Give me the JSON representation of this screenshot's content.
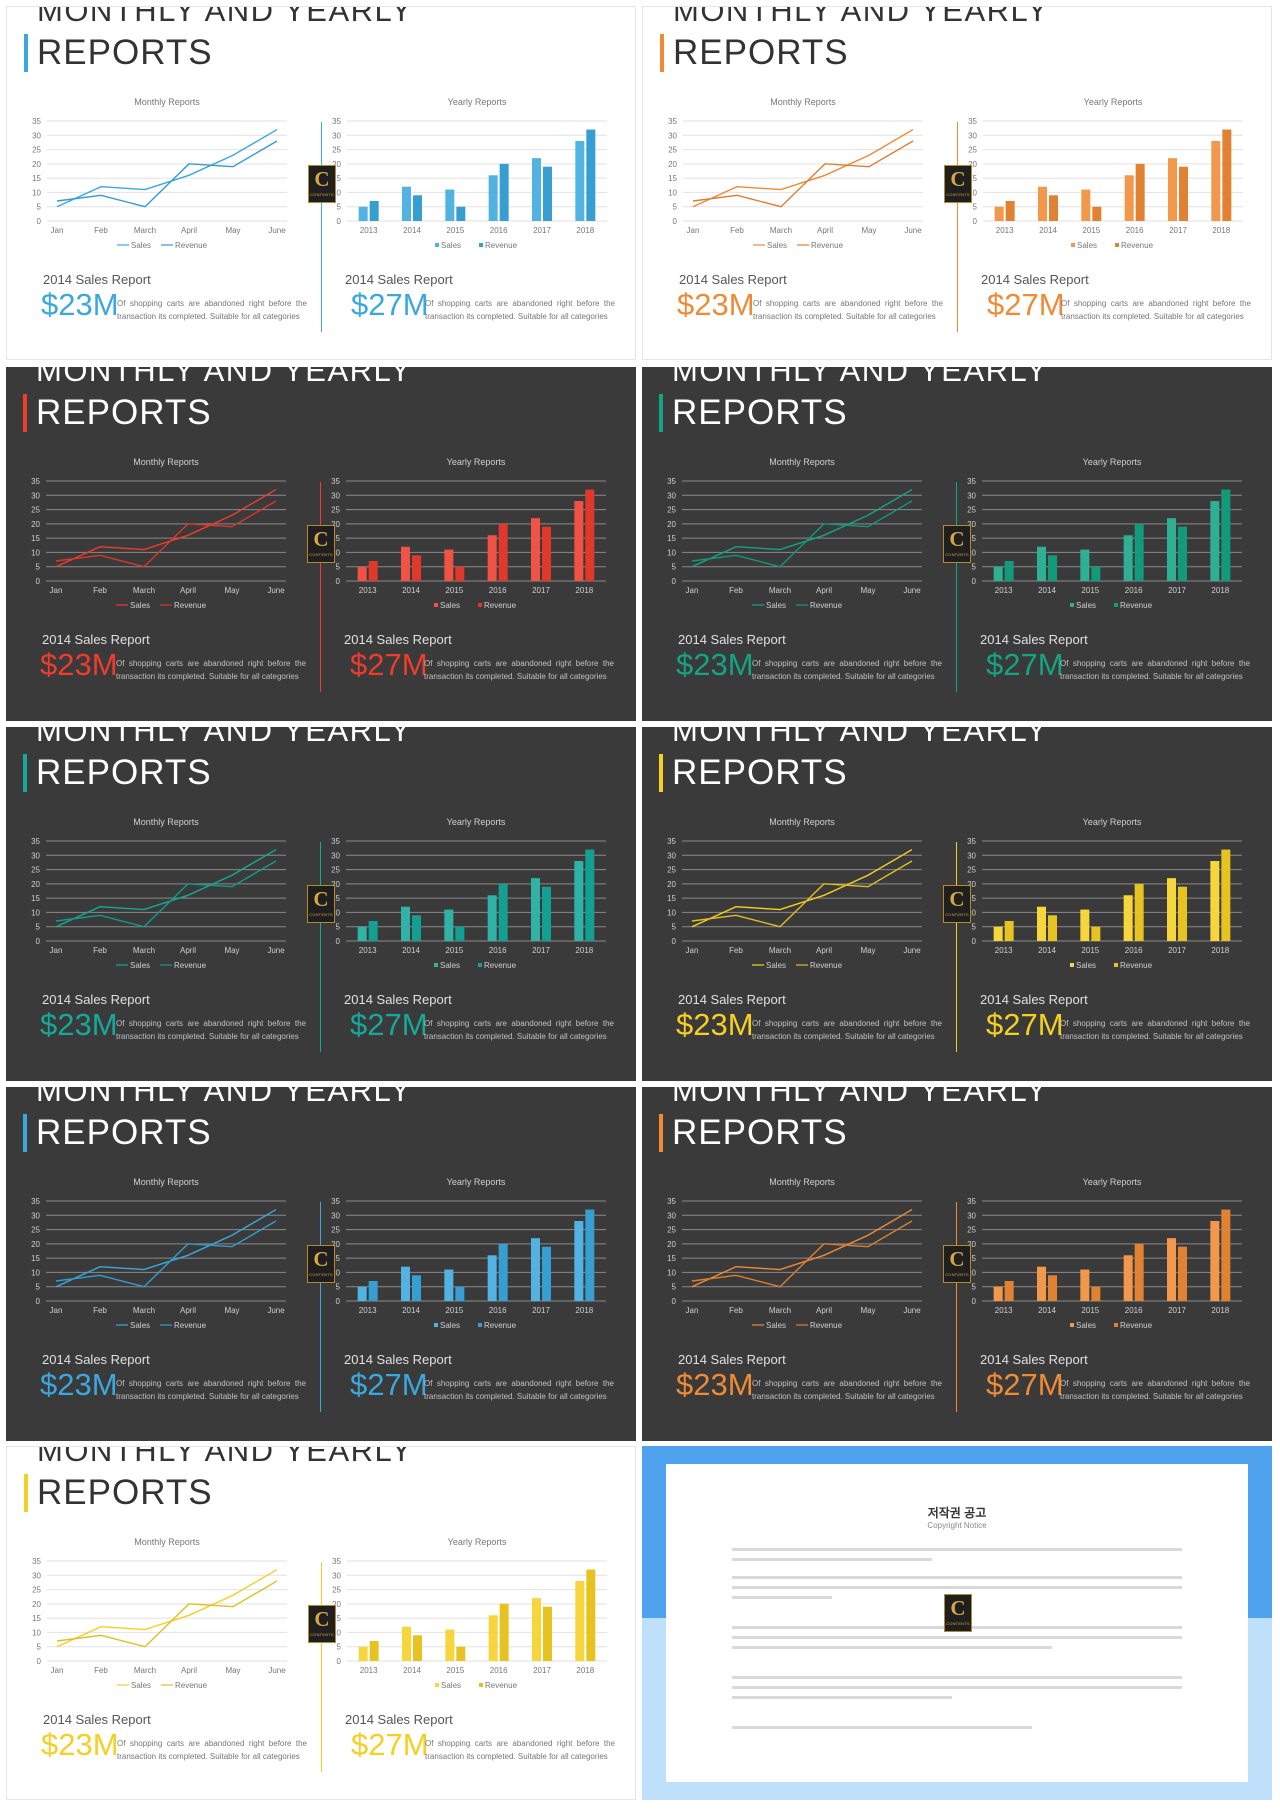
{
  "slides": [
    {
      "theme": "light",
      "accent": "#3aa8de"
    },
    {
      "theme": "light",
      "accent": "#ef8a35"
    },
    {
      "theme": "dark",
      "accent": "#ee3c2d"
    },
    {
      "theme": "dark",
      "accent": "#13a484"
    },
    {
      "theme": "dark",
      "accent": "#14a99a"
    },
    {
      "theme": "dark",
      "accent": "#f6cf23"
    },
    {
      "theme": "dark",
      "accent": "#3aa8de"
    },
    {
      "theme": "dark",
      "accent": "#ef8a35"
    },
    {
      "theme": "light",
      "accent": "#f6cf23"
    }
  ],
  "slide_text": {
    "title_line1": "MONTHLY AND YEARLY",
    "title_line2": "REPORTS",
    "left_report_title": "2014 Sales Report",
    "right_report_title": "2014 Sales Report",
    "left_value": "$23M",
    "right_value": "$27M",
    "description": "Of shopping carts are abandoned right before the transaction its completed. Suitable for all categories",
    "logo_letter": "C",
    "logo_word": "CONTENTS"
  },
  "chart_data": [
    {
      "type": "line",
      "title": "Monthly Reports",
      "categories": [
        "Jan",
        "Feb",
        "March",
        "April",
        "May",
        "June"
      ],
      "ylim": [
        0,
        35
      ],
      "yticks": [
        0,
        5,
        10,
        15,
        20,
        25,
        30,
        35
      ],
      "grid": true,
      "legend_position": "bottom",
      "series": [
        {
          "name": "Sales",
          "values": [
            5,
            12,
            11,
            16,
            23,
            32
          ]
        },
        {
          "name": "Revenue",
          "values": [
            7,
            9,
            5,
            20,
            19,
            28
          ]
        }
      ]
    },
    {
      "type": "bar",
      "title": "Yearly Reports",
      "categories": [
        "2013",
        "2014",
        "2015",
        "2016",
        "2017",
        "2018"
      ],
      "ylim": [
        0,
        35
      ],
      "yticks": [
        0,
        5,
        10,
        15,
        20,
        25,
        30,
        35
      ],
      "grid": true,
      "legend_position": "bottom",
      "series": [
        {
          "name": "Sales",
          "values": [
            5,
            12,
            11,
            16,
            22,
            28
          ]
        },
        {
          "name": "Revenue",
          "values": [
            7,
            9,
            5,
            20,
            19,
            32
          ]
        }
      ]
    }
  ],
  "notice": {
    "title": "저작권 공고",
    "subtitle": "Copyright Notice",
    "accent_top": "#4fa3ee",
    "accent_bottom": "#bfe0fb"
  }
}
